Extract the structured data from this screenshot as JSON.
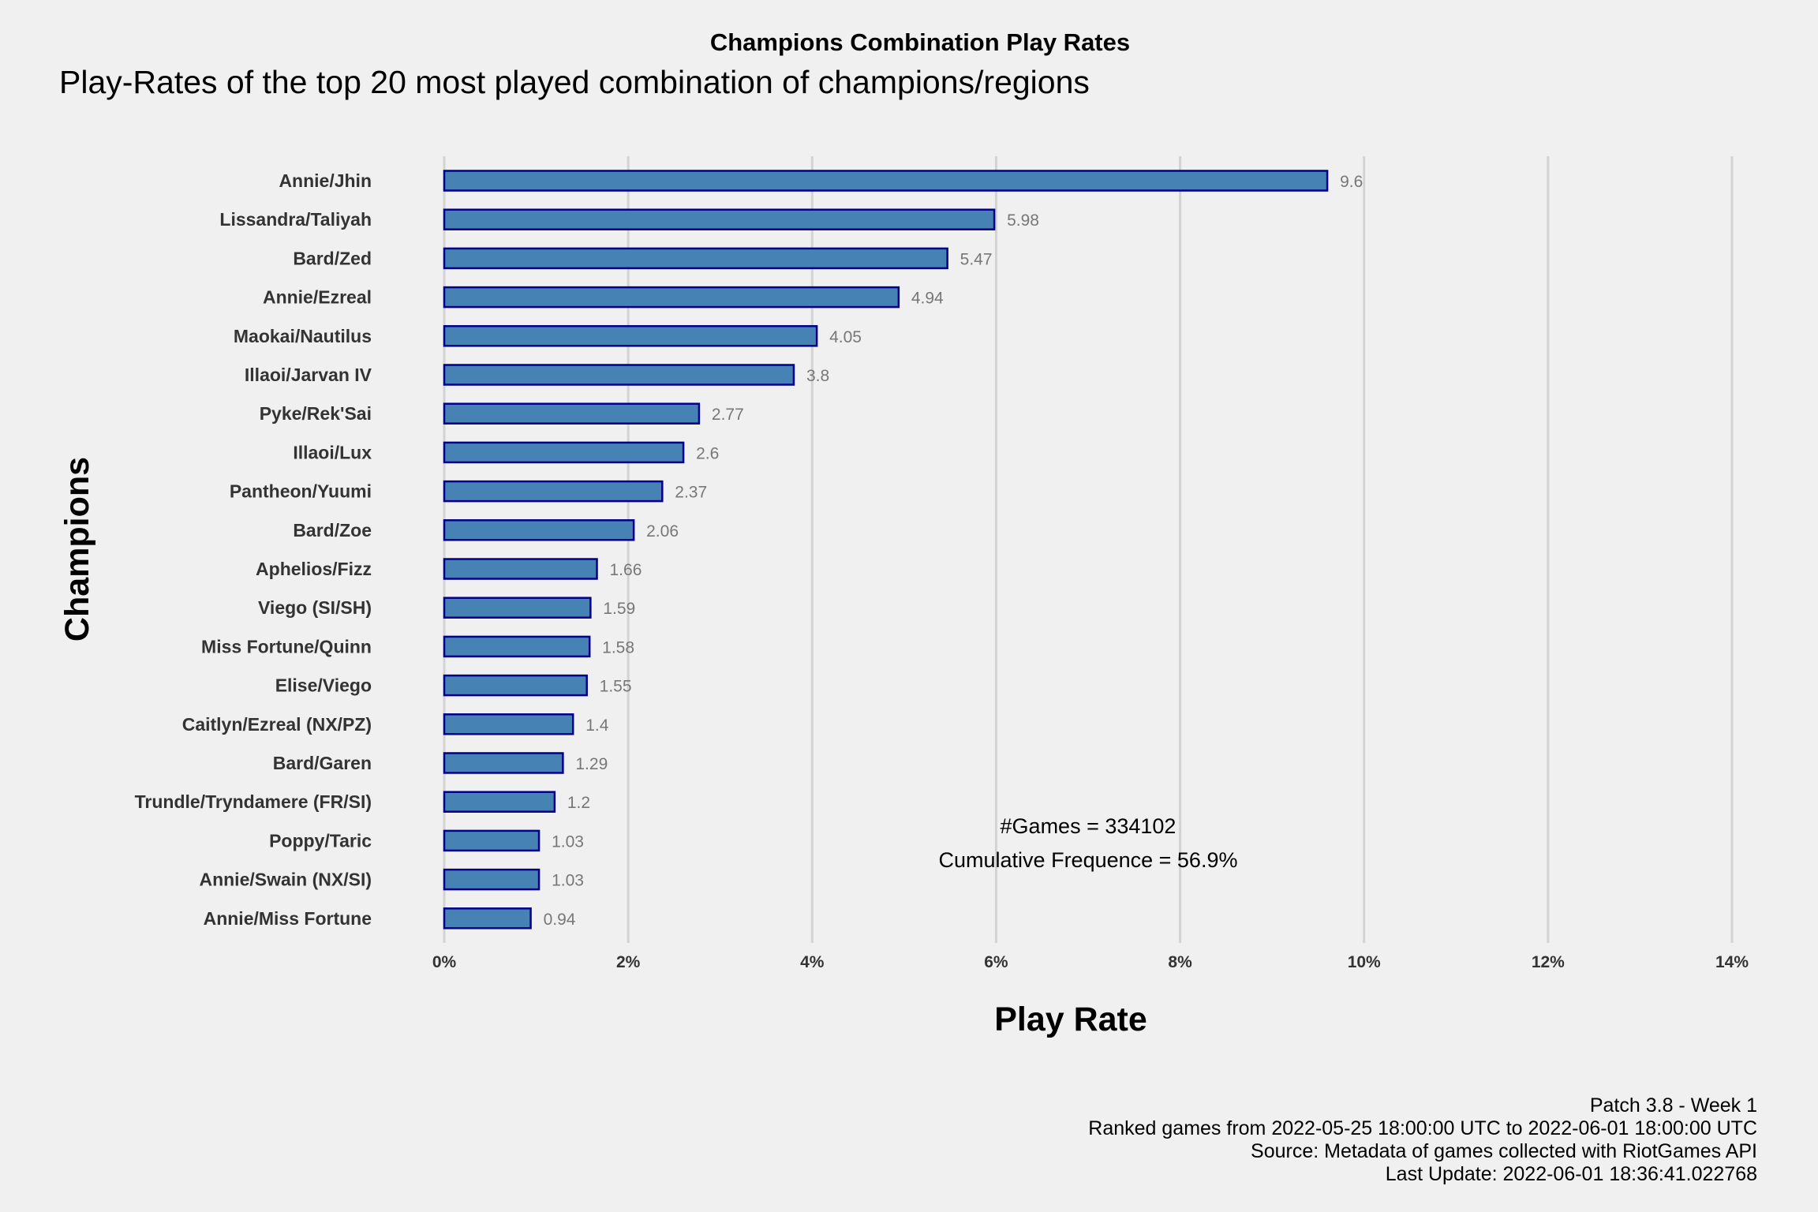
{
  "chart_data": {
    "type": "bar",
    "orientation": "horizontal",
    "title": "Champions Combination Play Rates",
    "subtitle": "Play-Rates of the top 20 most played combination of champions/regions",
    "xlabel": "Play Rate",
    "ylabel": "Champions",
    "xlim": [
      0,
      14
    ],
    "xticks": [
      "0%",
      "2%",
      "4%",
      "6%",
      "8%",
      "10%",
      "12%",
      "14%"
    ],
    "grid": "vertical",
    "categories": [
      "Annie/Jhin",
      "Lissandra/Taliyah",
      "Bard/Zed",
      "Annie/Ezreal",
      "Maokai/Nautilus",
      "Illaoi/Jarvan IV",
      "Pyke/Rek'Sai",
      "Illaoi/Lux",
      "Pantheon/Yuumi",
      "Bard/Zoe",
      "Aphelios/Fizz",
      "Viego (SI/SH)",
      "Miss Fortune/Quinn",
      "Elise/Viego",
      "Caitlyn/Ezreal (NX/PZ)",
      "Bard/Garen",
      "Trundle/Tryndamere (FR/SI)",
      "Poppy/Taric",
      "Annie/Swain (NX/SI)",
      "Annie/Miss Fortune"
    ],
    "values": [
      9.6,
      5.98,
      5.47,
      4.94,
      4.05,
      3.8,
      2.77,
      2.6,
      2.37,
      2.06,
      1.66,
      1.59,
      1.58,
      1.55,
      1.4,
      1.29,
      1.2,
      1.03,
      1.03,
      0.94
    ],
    "value_labels": [
      "9.6",
      "5.98",
      "5.47",
      "4.94",
      "4.05",
      "3.8",
      "2.77",
      "2.6",
      "2.37",
      "2.06",
      "1.66",
      "1.59",
      "1.58",
      "1.55",
      "1.4",
      "1.29",
      "1.2",
      "1.03",
      "1.03",
      "0.94"
    ],
    "annotations": [
      "#Games = 334102",
      "Cumulative Frequence = 56.9%"
    ],
    "caption": [
      "Patch 3.8 - Week 1",
      "Ranked games from 2022-05-25 18:00:00 UTC to 2022-06-01 18:00:00 UTC",
      "Source: Metadata of games collected with RiotGames API",
      "Last Update: 2022-06-01 18:36:41.022768"
    ],
    "colors": {
      "bar_fill": "#4682b4",
      "bar_border": "#00008b",
      "background": "#f0f0f0",
      "grid": "#d3d3d3",
      "value_label": "#777777"
    }
  }
}
